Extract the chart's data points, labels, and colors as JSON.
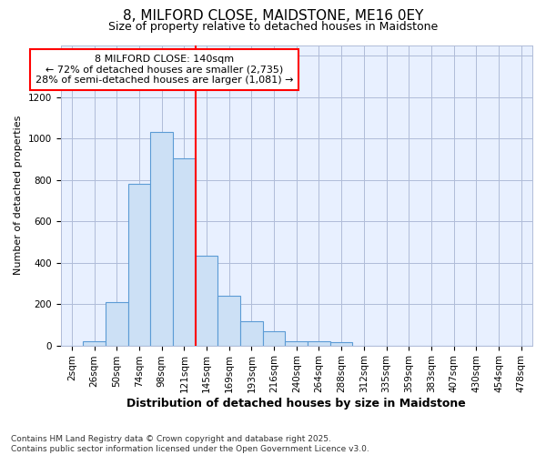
{
  "title_line1": "8, MILFORD CLOSE, MAIDSTONE, ME16 0EY",
  "title_line2": "Size of property relative to detached houses in Maidstone",
  "xlabel": "Distribution of detached houses by size in Maidstone",
  "ylabel": "Number of detached properties",
  "categories": [
    "2sqm",
    "26sqm",
    "50sqm",
    "74sqm",
    "98sqm",
    "121sqm",
    "145sqm",
    "169sqm",
    "193sqm",
    "216sqm",
    "240sqm",
    "264sqm",
    "288sqm",
    "312sqm",
    "335sqm",
    "359sqm",
    "383sqm",
    "407sqm",
    "430sqm",
    "454sqm",
    "478sqm"
  ],
  "values": [
    0,
    20,
    210,
    780,
    1030,
    905,
    435,
    240,
    115,
    70,
    20,
    20,
    15,
    0,
    0,
    0,
    0,
    0,
    0,
    0,
    0
  ],
  "bar_color": "#cce0f5",
  "bar_edge_color": "#5b9bd5",
  "red_line_index": 6,
  "annotation_title": "8 MILFORD CLOSE: 140sqm",
  "annotation_line2": "← 72% of detached houses are smaller (2,735)",
  "annotation_line3": "28% of semi-detached houses are larger (1,081) →",
  "ylim": [
    0,
    1450
  ],
  "yticks": [
    0,
    200,
    400,
    600,
    800,
    1000,
    1200,
    1400
  ],
  "footer_line1": "Contains HM Land Registry data © Crown copyright and database right 2025.",
  "footer_line2": "Contains public sector information licensed under the Open Government Licence v3.0.",
  "fig_bg_color": "#ffffff",
  "plot_bg_color": "#e8f0ff",
  "grid_color": "#b0bcd8",
  "title_fontsize": 11,
  "subtitle_fontsize": 9,
  "xlabel_fontsize": 9,
  "ylabel_fontsize": 8,
  "tick_fontsize": 7.5,
  "annotation_fontsize": 8,
  "footer_fontsize": 6.5
}
